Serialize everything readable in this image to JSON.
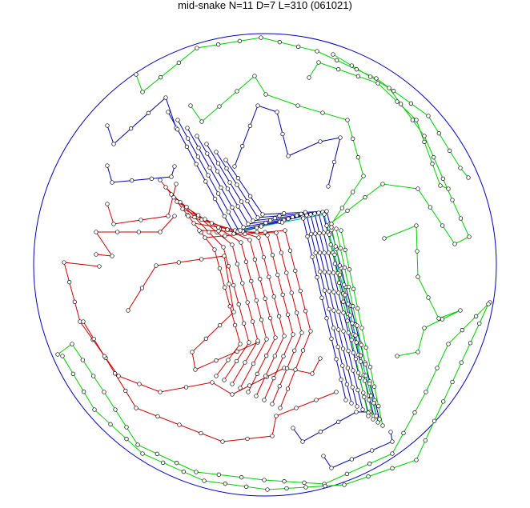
{
  "header": {
    "title": "mid-snake N=11 D=7 L=310 (061021)"
  }
}
